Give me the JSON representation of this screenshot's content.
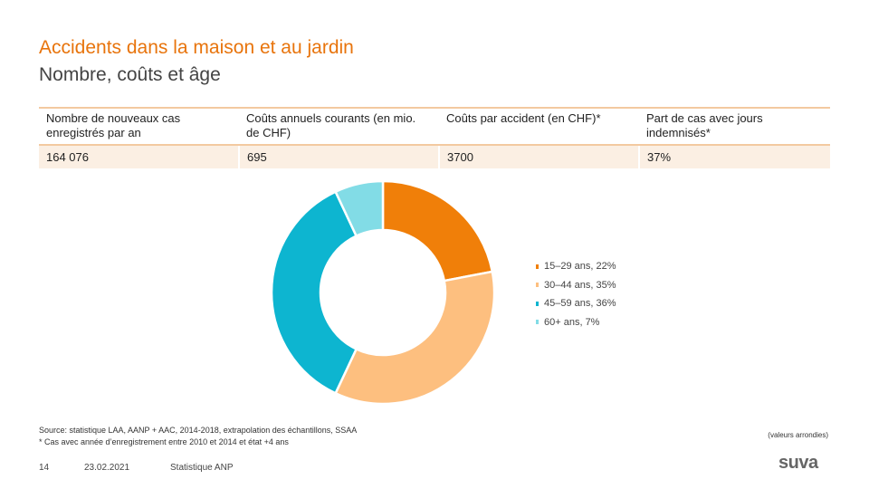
{
  "header": {
    "title": "Accidents dans la maison et au jardin",
    "subtitle": "Nombre, coûts et âge"
  },
  "table": {
    "headers": [
      "Nombre de nouveaux cas enregistrés par an",
      "Coûts annuels courants (en mio. de CHF)",
      "Coûts par accident (en CHF)*",
      "Part de cas avec jours indemnisés*"
    ],
    "values": [
      "164 076",
      "695",
      "3700",
      "37%"
    ]
  },
  "chart_data": {
    "type": "pie",
    "variant": "donut",
    "categories": [
      "15–29 ans",
      "30–44 ans",
      "45–59 ans",
      "60+ ans"
    ],
    "values": [
      22,
      35,
      36,
      7
    ],
    "unit": "%",
    "legend": [
      "15–29 ans, 22%",
      "30–44 ans, 35%",
      "45–59 ans, 36%",
      "60+ ans, 7%"
    ],
    "colors": [
      "#F07F09",
      "#FDBF7F",
      "#0DB5D0",
      "#82DCE6"
    ],
    "legend_position": "right"
  },
  "footnotes": {
    "source": "Source: statistique LAA, AANP + AAC, 2014-2018, extrapolation des échantillons, SSAA",
    "asterisk": "* Cas avec année d’enregistrement entre 2010 et 2014 et état +4 ans",
    "rounded": "(valeurs arrondies)"
  },
  "footer": {
    "page": "14",
    "date": "23.02.2021",
    "label": "Statistique ANP",
    "logo": "suva"
  }
}
